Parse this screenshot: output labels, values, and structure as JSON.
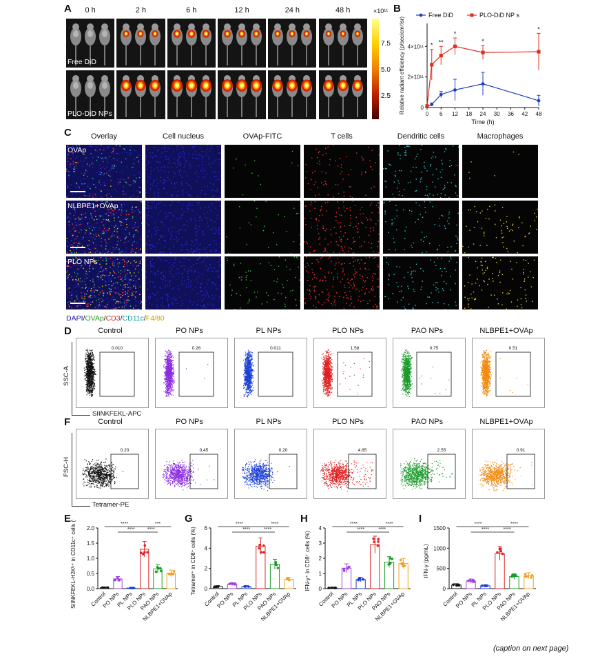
{
  "panels": {
    "A": "A",
    "B": "B",
    "C": "C",
    "D": "D",
    "F": "F",
    "E": "E",
    "G": "G",
    "H": "H",
    "I": "I"
  },
  "panelA": {
    "timepoints": [
      "0 h",
      "2 h",
      "6 h",
      "12 h",
      "24 h",
      "48 h"
    ],
    "rows": [
      "Free DiD",
      "PLO-DiD NPs"
    ],
    "colorbar": {
      "exponent": "×10¹¹",
      "ticks": [
        "7.5",
        "5.0",
        "2.5"
      ]
    }
  },
  "chart_data": [
    {
      "id": "B",
      "type": "line",
      "x": [
        0,
        2,
        6,
        12,
        24,
        48
      ],
      "xlabel": "Time (h)",
      "ylabel": "Relative radiant efficiency (p/sec/cm²/sr)",
      "xlim": [
        0,
        48
      ],
      "xticks": [
        "0",
        "6",
        "12",
        "18",
        "24",
        "30",
        "36",
        "42",
        "48"
      ],
      "yticks": [
        "0",
        "2×10¹¹",
        "4×10¹¹"
      ],
      "ylim": [
        0,
        5.5
      ],
      "series": [
        {
          "name": "Free DiD",
          "color": "#1f3fbf",
          "values": [
            0.05,
            0.2,
            0.85,
            1.15,
            1.55,
            0.45
          ],
          "err": [
            0.05,
            0.1,
            0.2,
            0.7,
            0.75,
            0.35
          ]
        },
        {
          "name": "PLO-DiD NP s",
          "color": "#e03020",
          "values": [
            0.1,
            2.8,
            3.4,
            4.0,
            3.6,
            3.65
          ],
          "err": [
            0.05,
            1.0,
            0.6,
            0.55,
            0.45,
            1.2
          ]
        }
      ],
      "significance": [
        {
          "x": 2,
          "label": "*"
        },
        {
          "x": 6,
          "label": "**"
        },
        {
          "x": 12,
          "label": "*"
        },
        {
          "x": 24,
          "label": "*"
        },
        {
          "x": 48,
          "label": "*"
        }
      ]
    },
    {
      "id": "E",
      "type": "bar",
      "categories": [
        "Control",
        "PO NPs",
        "PL NPs",
        "PLO NPs",
        "PAO NPs",
        "NLBPE1+OVAp"
      ],
      "ylabel": "SIINKFEKL-H2Kᵇ⁺ in CD11c⁺ cells (%)",
      "ylim": [
        0,
        2.0
      ],
      "yticks": [
        "0.0",
        "0.5",
        "1.0",
        "1.5",
        "2.0"
      ],
      "values": [
        0.03,
        0.32,
        0.02,
        1.3,
        0.65,
        0.5
      ],
      "sig": [
        "****",
        "****",
        "***",
        "****"
      ]
    },
    {
      "id": "G",
      "type": "bar",
      "categories": [
        "Control",
        "PO NPs",
        "PL NPs",
        "PLO NPs",
        "PAO NPs",
        "NLBPE1+OVAp"
      ],
      "ylabel": "Tetramer⁺ in CD8⁺ cells (%)",
      "ylim": [
        0,
        6
      ],
      "yticks": [
        "0",
        "2",
        "4",
        "6"
      ],
      "values": [
        0.2,
        0.45,
        0.2,
        4.2,
        2.4,
        0.9
      ],
      "sig": [
        "****",
        "****",
        "****",
        "****"
      ]
    },
    {
      "id": "H",
      "type": "bar",
      "categories": [
        "Control",
        "PO NPs",
        "PL NPs",
        "PLO NPs",
        "PAO NPs",
        "NLBPE1+OVAp"
      ],
      "ylabel": "IFN-γ⁺ in CD8⁺ cells (%)",
      "ylim": [
        0,
        4
      ],
      "yticks": [
        "0",
        "1",
        "2",
        "3",
        "4"
      ],
      "values": [
        0.05,
        1.35,
        0.6,
        2.9,
        1.75,
        1.65
      ],
      "sig": [
        "****",
        "****",
        "****",
        "****"
      ]
    },
    {
      "id": "I",
      "type": "bar",
      "categories": [
        "Control",
        "PO NPs",
        "PL NPs",
        "PLO NPs",
        "PAO NPs",
        "NLBPE1+OVAp"
      ],
      "ylabel": "IFN-γ (pg/mL)",
      "ylim": [
        0,
        1500
      ],
      "yticks": [
        "0",
        "500",
        "1000",
        "1500"
      ],
      "values": [
        90,
        190,
        70,
        870,
        300,
        320
      ],
      "sig": [
        "****",
        "****",
        "****",
        "****"
      ]
    }
  ],
  "panelC": {
    "columns": [
      "Overlay",
      "Cell nucleus",
      "OVAp-FITC",
      "T cells",
      "Dendritic cells",
      "Macrophages"
    ],
    "rows": [
      "OVAp",
      "NLBPE1+OVAp",
      "PLO NPs"
    ],
    "legend": [
      {
        "t": "DAPI",
        "c": "#1a1aa8"
      },
      {
        "t": "/",
        "c": "#111"
      },
      {
        "t": "OVAp",
        "c": "#2a9a2a"
      },
      {
        "t": "/",
        "c": "#111"
      },
      {
        "t": "CD3",
        "c": "#d42020"
      },
      {
        "t": "/",
        "c": "#111"
      },
      {
        "t": "CD11c",
        "c": "#12a0a0"
      },
      {
        "t": "/",
        "c": "#111"
      },
      {
        "t": "F4/80",
        "c": "#c8a800"
      }
    ]
  },
  "panelD": {
    "titles": [
      "Control",
      "PO NPs",
      "PL NPs",
      "PLO NPs",
      "PAO NPs",
      "NLBPE1+OVAp"
    ],
    "values": [
      "0.010",
      "0.26",
      "0.011",
      "1.58",
      "0.75",
      "0.51"
    ],
    "ylabel": "SSC-A",
    "xlabel": "SIINKFEKL-APC",
    "colors": [
      "#111111",
      "#8a2be2",
      "#1c3fd6",
      "#e02020",
      "#1a9a2a",
      "#f08a10"
    ]
  },
  "panelF": {
    "titles": [
      "Control",
      "PO NPs",
      "PL NPs",
      "PLO NPs",
      "PAO NPs",
      "NLBPE1+OVAp"
    ],
    "values": [
      "0.20",
      "0.45",
      "0.20",
      "4.85",
      "2.55",
      "0.91"
    ],
    "ylabel": "FSC-H",
    "xlabel": "Tetramer-PE",
    "colors": [
      "#111111",
      "#8a2be2",
      "#1c3fd6",
      "#e02020",
      "#1a9a2a",
      "#f08a10"
    ]
  },
  "caption": "(caption on next page)"
}
